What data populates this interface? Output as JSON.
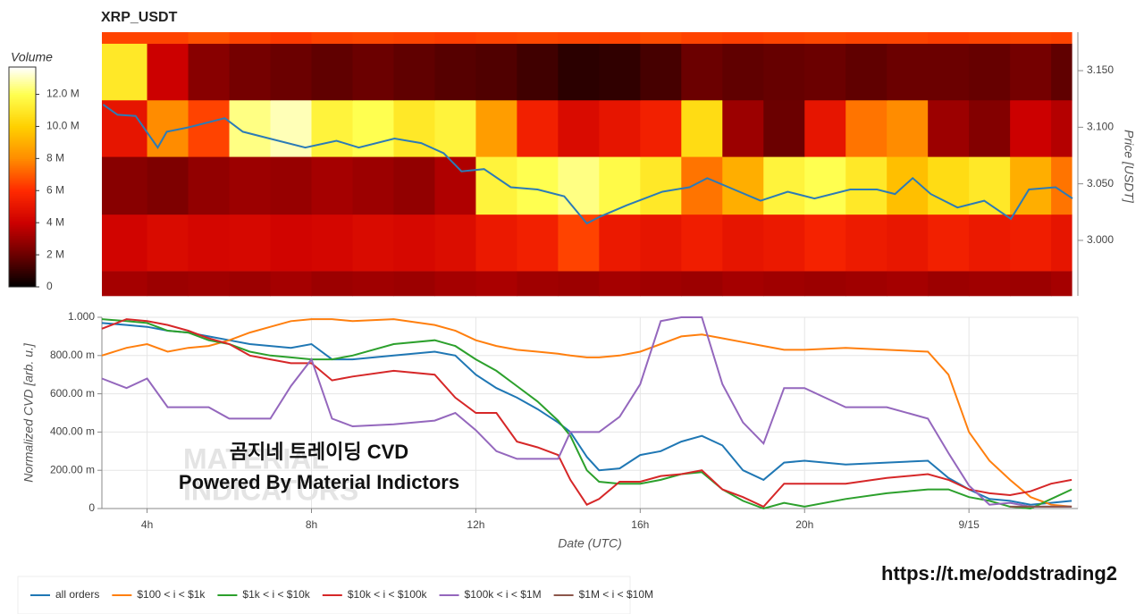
{
  "chart_data": [
    {
      "type": "heatmap",
      "title": "XRP_USDT",
      "colorbar_title": "Volume",
      "xlim": [
        2.9,
        26.65
      ],
      "ylim": [
        2.951,
        3.184
      ],
      "y_position": "right",
      "ylabel": "Price [USDT]",
      "yticks": [
        {
          "value": 3.0,
          "label": "3.000"
        },
        {
          "value": 3.05,
          "label": "3.050"
        },
        {
          "value": 3.1,
          "label": "3.100"
        },
        {
          "value": 3.15,
          "label": "3.150"
        }
      ],
      "x_bins": [
        2.9,
        4,
        5,
        6,
        7,
        8,
        9,
        10,
        11,
        12,
        13,
        14,
        15,
        16,
        17,
        18,
        19,
        20,
        21,
        22,
        23,
        24,
        25,
        26,
        26.5
      ],
      "y_bins": [
        2.951,
        2.973,
        3.023,
        3.074,
        3.124,
        3.174,
        3.184
      ],
      "zlim": [
        0,
        13700000
      ],
      "zticks": [
        0,
        {
          "value": 2000000,
          "label": "2 M"
        },
        {
          "value": 4000000,
          "label": "4 M"
        },
        {
          "value": 6000000,
          "label": "6 M"
        },
        {
          "value": 8000000,
          "label": "8 M"
        },
        {
          "value": 10000000,
          "label": "10.0 M"
        },
        {
          "value": 12000000,
          "label": "12.0 M"
        }
      ],
      "colorscale": [
        [
          0,
          "#000000"
        ],
        [
          2000000,
          "#6b0000"
        ],
        [
          4000000,
          "#cc0000"
        ],
        [
          6000000,
          "#ff2a00"
        ],
        [
          8000000,
          "#ff8c00"
        ],
        [
          10000000,
          "#ffd000"
        ],
        [
          12000000,
          "#ffff50"
        ],
        [
          13700000,
          "#ffffff"
        ]
      ],
      "z": [
        [
          3200000,
          3000000,
          3100000,
          3000000,
          3200000,
          3000000,
          3100000,
          3000000,
          3200000,
          3300000,
          3100000,
          3000000,
          3200000,
          3100000,
          3000000,
          3200000,
          3100000,
          3000000,
          3100000,
          3200000,
          3000000,
          3100000,
          3000000,
          3200000
        ],
        [
          4200000,
          4500000,
          4300000,
          4400000,
          4200000,
          4300000,
          4500000,
          4400000,
          4600000,
          5200000,
          5500000,
          6500000,
          5200000,
          5000000,
          5400000,
          5000000,
          5200000,
          5600000,
          5300000,
          5100000,
          5500000,
          5200000,
          5400000,
          5000000
        ],
        [
          2600000,
          2400000,
          2800000,
          3000000,
          2900000,
          3200000,
          3000000,
          2800000,
          3400000,
          11500000,
          12000000,
          12500000,
          11800000,
          11000000,
          7500000,
          9000000,
          11500000,
          12000000,
          11000000,
          9500000,
          10500000,
          11000000,
          9000000,
          7500000
        ],
        [
          5000000,
          8000000,
          6500000,
          12500000,
          13000000,
          11500000,
          12000000,
          11000000,
          11500000,
          8500000,
          5500000,
          4500000,
          5000000,
          5500000,
          10500000,
          3000000,
          2000000,
          5000000,
          7500000,
          8000000,
          3000000,
          2500000,
          4000000,
          3500000
        ],
        [
          11000000,
          4000000,
          2600000,
          2200000,
          2000000,
          1800000,
          2000000,
          1800000,
          1600000,
          1500000,
          1200000,
          800000,
          900000,
          1300000,
          2000000,
          1800000,
          1900000,
          2000000,
          1800000,
          2000000,
          2000000,
          1900000,
          2200000,
          1800000
        ],
        [
          6500000,
          6500000,
          6800000,
          6500000,
          6300000,
          6500000,
          6600000,
          6500000,
          6400000,
          6500000,
          6600000,
          6500000,
          6500000,
          6700000,
          6500000,
          6400000,
          6500000,
          6600000,
          6500000,
          6500000,
          6400000,
          6500000,
          6600000,
          6500000
        ]
      ],
      "price": {
        "color": "#2c7bb6",
        "x": [
          2.93,
          3.28,
          3.72,
          4.26,
          4.48,
          5.02,
          5.89,
          6.33,
          6.98,
          7.85,
          8.61,
          9.15,
          10.02,
          10.67,
          11.22,
          11.65,
          12.2,
          12.85,
          13.5,
          14.15,
          14.7,
          15.02,
          15.67,
          16.54,
          17.2,
          17.63,
          18.28,
          18.93,
          19.59,
          20.24,
          21.11,
          21.76,
          22.2,
          22.63,
          23.07,
          23.72,
          24.37,
          25.02,
          25.46,
          26.11,
          26.52
        ],
        "values": [
          3.12,
          3.111,
          3.11,
          3.082,
          3.096,
          3.1,
          3.108,
          3.096,
          3.09,
          3.082,
          3.088,
          3.082,
          3.09,
          3.086,
          3.077,
          3.061,
          3.063,
          3.047,
          3.045,
          3.039,
          3.015,
          3.021,
          3.031,
          3.043,
          3.047,
          3.055,
          3.045,
          3.035,
          3.043,
          3.037,
          3.045,
          3.045,
          3.041,
          3.055,
          3.041,
          3.029,
          3.035,
          3.019,
          3.045,
          3.047,
          3.037
        ]
      }
    },
    {
      "type": "line",
      "xlabel": "Date (UTC)",
      "ylabel": "Normalized CVD [arb. u.]",
      "grid": true,
      "legend": "bottom",
      "xlim": [
        2.9,
        26.65
      ],
      "ylim": [
        0,
        1
      ],
      "xticks": [
        {
          "value": 4,
          "label": "4h"
        },
        {
          "value": 8,
          "label": "8h"
        },
        {
          "value": 12,
          "label": "12h"
        },
        {
          "value": 16,
          "label": "16h"
        },
        {
          "value": 20,
          "label": "20h"
        },
        {
          "value": 24,
          "label": "9/15"
        }
      ],
      "yticks": [
        0,
        {
          "value": 0.2,
          "label": "200.00 m"
        },
        {
          "value": 0.4,
          "label": "400.00 m"
        },
        {
          "value": 0.6,
          "label": "600.00 m"
        },
        {
          "value": 0.8,
          "label": "800.00 m"
        },
        {
          "value": 1,
          "label": "1.000"
        }
      ],
      "x": [
        2.9,
        3.5,
        4,
        4.5,
        5,
        5.5,
        6,
        6.5,
        7,
        7.5,
        8,
        8.5,
        9,
        10,
        11,
        11.5,
        12,
        12.5,
        13,
        13.5,
        14,
        14.3,
        14.7,
        15,
        15.5,
        16,
        16.5,
        17,
        17.5,
        18,
        18.5,
        19,
        19.5,
        20,
        21,
        22,
        23,
        23.5,
        24,
        24.5,
        25,
        25.5,
        26,
        26.5
      ],
      "series": [
        {
          "name": "all orders",
          "color": "#1f77b4",
          "values": [
            0.97,
            0.96,
            0.95,
            0.93,
            0.92,
            0.9,
            0.88,
            0.86,
            0.85,
            0.84,
            0.86,
            0.78,
            0.78,
            0.8,
            0.82,
            0.8,
            0.7,
            0.63,
            0.58,
            0.52,
            0.45,
            0.4,
            0.27,
            0.2,
            0.21,
            0.28,
            0.3,
            0.35,
            0.38,
            0.33,
            0.2,
            0.15,
            0.24,
            0.25,
            0.23,
            0.24,
            0.25,
            0.16,
            0.1,
            0.05,
            0.04,
            0.02,
            0.03,
            0.04
          ]
        },
        {
          "name": "$100 < i < $1k",
          "color": "#ff7f0e",
          "values": [
            0.8,
            0.84,
            0.86,
            0.82,
            0.84,
            0.85,
            0.88,
            0.92,
            0.95,
            0.98,
            0.99,
            0.99,
            0.98,
            0.99,
            0.96,
            0.93,
            0.88,
            0.85,
            0.83,
            0.82,
            0.81,
            0.8,
            0.79,
            0.79,
            0.8,
            0.82,
            0.86,
            0.9,
            0.91,
            0.89,
            0.87,
            0.85,
            0.83,
            0.83,
            0.84,
            0.83,
            0.82,
            0.7,
            0.4,
            0.25,
            0.15,
            0.06,
            0.02,
            0.01
          ]
        },
        {
          "name": "$1k < i < $10k",
          "color": "#2ca02c",
          "values": [
            0.99,
            0.98,
            0.97,
            0.93,
            0.92,
            0.88,
            0.86,
            0.82,
            0.8,
            0.79,
            0.78,
            0.78,
            0.8,
            0.86,
            0.88,
            0.85,
            0.78,
            0.72,
            0.64,
            0.56,
            0.46,
            0.38,
            0.2,
            0.14,
            0.13,
            0.13,
            0.15,
            0.18,
            0.19,
            0.1,
            0.04,
            0,
            0.03,
            0.01,
            0.05,
            0.08,
            0.1,
            0.1,
            0.06,
            0.04,
            0.01,
            0,
            0.05,
            0.1
          ]
        },
        {
          "name": "$10k < i < $100k",
          "color": "#d62728",
          "values": [
            0.94,
            0.99,
            0.98,
            0.96,
            0.93,
            0.89,
            0.86,
            0.8,
            0.78,
            0.76,
            0.76,
            0.67,
            0.69,
            0.72,
            0.7,
            0.58,
            0.5,
            0.5,
            0.35,
            0.32,
            0.28,
            0.15,
            0.02,
            0.05,
            0.14,
            0.14,
            0.17,
            0.18,
            0.2,
            0.1,
            0.06,
            0.01,
            0.13,
            0.13,
            0.13,
            0.16,
            0.18,
            0.15,
            0.1,
            0.08,
            0.07,
            0.09,
            0.13,
            0.15
          ]
        },
        {
          "name": "$100k < i < $1M",
          "color": "#9467bd",
          "values": [
            0.68,
            0.63,
            0.68,
            0.53,
            0.53,
            0.53,
            0.47,
            0.47,
            0.47,
            0.64,
            0.78,
            0.47,
            0.43,
            0.44,
            0.46,
            0.5,
            0.41,
            0.3,
            0.26,
            0.26,
            0.26,
            0.4,
            0.4,
            0.4,
            0.48,
            0.65,
            0.98,
            1,
            1,
            0.65,
            0.45,
            0.34,
            0.63,
            0.63,
            0.53,
            0.53,
            0.47,
            0.29,
            0.12,
            0.02,
            0.03,
            0.01,
            0.01,
            0.01
          ]
        },
        {
          "name": "$1M < i < $10M",
          "color": "#8c564b",
          "values": [
            null,
            null,
            null,
            null,
            null,
            null,
            null,
            null,
            null,
            null,
            null,
            null,
            null,
            null,
            null,
            null,
            null,
            null,
            null,
            null,
            null,
            null,
            null,
            null,
            null,
            null,
            null,
            null,
            null,
            null,
            null,
            null,
            null,
            null,
            null,
            null,
            null,
            null,
            null,
            null,
            0.01,
            0.01,
            0.01,
            0.01
          ]
        }
      ]
    }
  ],
  "watermark": {
    "line1": "곰지네 트레이딩 CVD",
    "line2": "Powered By Material Indictors",
    "url": "https://t.me/oddstrading2",
    "logo": [
      "MATERIAL",
      "INDICATORS"
    ]
  }
}
